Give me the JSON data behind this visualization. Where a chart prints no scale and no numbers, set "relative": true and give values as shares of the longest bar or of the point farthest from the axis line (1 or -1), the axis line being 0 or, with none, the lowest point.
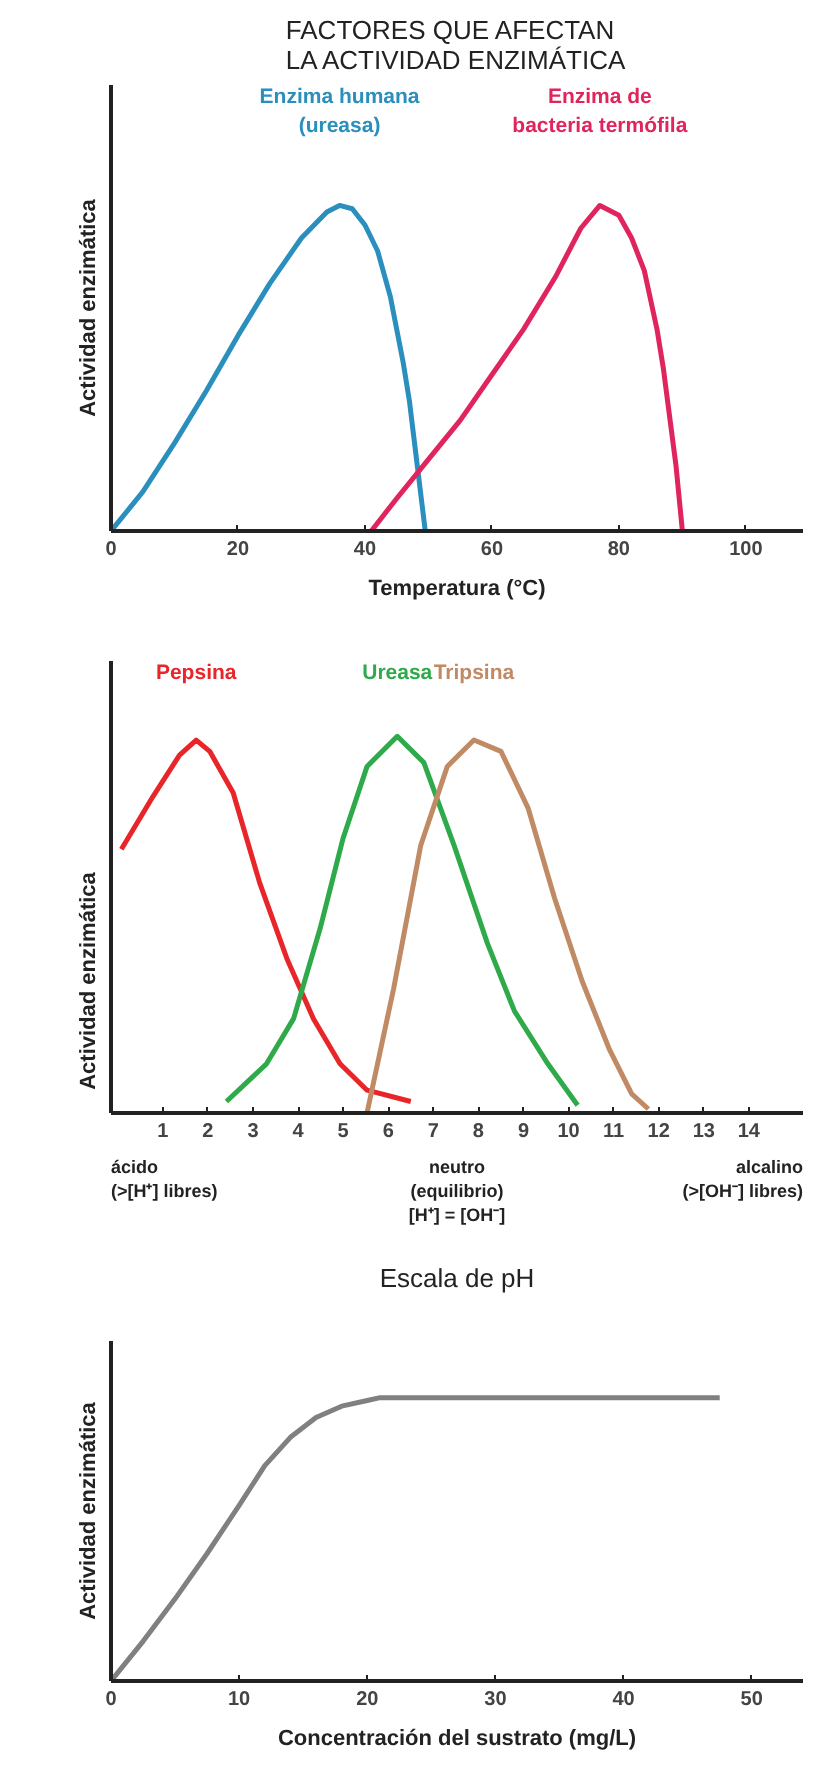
{
  "chart_data": [
    {
      "type": "line",
      "title": "FACTORES QUE AFECTAN LA ACTIVIDAD ENZIMÁTICA",
      "xlabel": "Temperatura (°C)",
      "ylabel": "Actividad enzimática",
      "relative": true,
      "xlim": [
        0,
        109
      ],
      "xticks": [
        0,
        20,
        40,
        60,
        80,
        100
      ],
      "legend": false,
      "grid": false,
      "series": [
        {
          "name": "Enzima humana (ureasa)",
          "color": "#2a8fbd",
          "x": [
            0,
            5,
            10,
            15,
            20,
            25,
            30,
            34,
            36,
            38,
            40,
            42,
            44,
            46,
            47,
            48,
            49,
            49.5
          ],
          "values": [
            0,
            0.12,
            0.27,
            0.43,
            0.6,
            0.76,
            0.9,
            0.98,
            1,
            0.99,
            0.94,
            0.86,
            0.72,
            0.52,
            0.4,
            0.24,
            0.08,
            0
          ]
        },
        {
          "name": "Enzima de bacteria termófila",
          "color": "#e0245e",
          "x": [
            41,
            45,
            50,
            55,
            60,
            65,
            70,
            74,
            77,
            80,
            82,
            84,
            86,
            87,
            88,
            89,
            90
          ],
          "values": [
            0,
            0.1,
            0.22,
            0.34,
            0.48,
            0.62,
            0.78,
            0.93,
            1,
            0.97,
            0.9,
            0.8,
            0.62,
            0.5,
            0.35,
            0.2,
            0
          ]
        }
      ]
    },
    {
      "type": "line",
      "xlabel": "Escala de pH",
      "ylabel": "Actividad enzimática",
      "relative": true,
      "xlim": [
        -0.15,
        15.2
      ],
      "xticks": [
        1,
        2,
        3,
        4,
        5,
        6,
        7,
        8,
        9,
        10,
        11,
        12,
        13,
        14
      ],
      "legend": false,
      "grid": false,
      "annotations": [
        "ácido\n(>[H⁺] libres)",
        "neutro\n(equilibrio)\n[H⁺] = [OH⁻]",
        "alcalino\n(>[OH⁻] libres)"
      ],
      "series": [
        {
          "name": "Pepsina",
          "color": "#e8262a",
          "x": [
            0.08,
            0.78,
            1.37,
            1.74,
            2.04,
            2.56,
            3.15,
            3.75,
            4.34,
            4.93,
            5.53,
            6.5
          ],
          "values": [
            0.7,
            0.84,
            0.95,
            0.99,
            0.96,
            0.85,
            0.61,
            0.41,
            0.25,
            0.13,
            0.06,
            0.03
          ]
        },
        {
          "name": "Ureasa",
          "color": "#2eaa4a",
          "x": [
            2.41,
            3.3,
            3.9,
            4.49,
            5.0,
            5.53,
            6.2,
            6.79,
            7.46,
            8.2,
            8.8,
            9.54,
            10.2
          ],
          "values": [
            0.03,
            0.13,
            0.25,
            0.49,
            0.73,
            0.92,
            1,
            0.93,
            0.71,
            0.45,
            0.27,
            0.13,
            0.02
          ]
        },
        {
          "name": "Tripsina",
          "color": "#c08a64",
          "x": [
            5.53,
            6.12,
            6.72,
            7.31,
            7.9,
            8.5,
            9.1,
            9.69,
            10.3,
            10.9,
            11.4,
            11.77
          ],
          "values": [
            0,
            0.33,
            0.71,
            0.92,
            0.99,
            0.96,
            0.81,
            0.57,
            0.35,
            0.17,
            0.05,
            0.01
          ]
        }
      ]
    },
    {
      "type": "line",
      "xlabel": "Concentración del sustrato (mg/L)",
      "ylabel": "Actividad enzimática",
      "relative": true,
      "xlim": [
        0,
        54
      ],
      "xticks": [
        0,
        10,
        20,
        30,
        40,
        50
      ],
      "legend": false,
      "grid": false,
      "series": [
        {
          "color": "#808080",
          "x": [
            0,
            2.5,
            5,
            7.5,
            10,
            12,
            14,
            16,
            18,
            20,
            21,
            47.5
          ],
          "values": [
            0,
            0.14,
            0.29,
            0.45,
            0.62,
            0.76,
            0.86,
            0.93,
            0.97,
            0.99,
            1,
            1
          ]
        }
      ]
    }
  ]
}
